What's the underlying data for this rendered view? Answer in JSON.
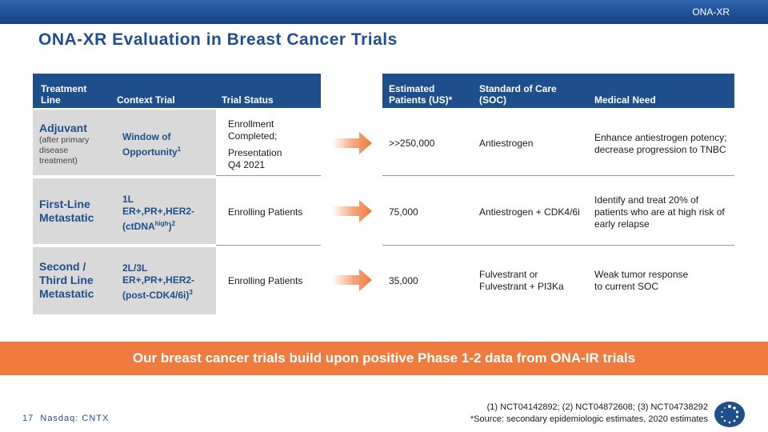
{
  "header": {
    "brand": "ONA-XR"
  },
  "title": "ONA-XR Evaluation in Breast Cancer Trials",
  "table": {
    "left_headers": {
      "line": [
        "Treatment",
        "Line"
      ],
      "context": "Context Trial",
      "status": "Trial Status"
    },
    "right_headers": {
      "patients": [
        "Estimated",
        "Patients (US)*"
      ],
      "soc": [
        "Standard of Care",
        "(SOC)"
      ],
      "need": "Medical Need"
    },
    "rows": [
      {
        "line_title": "Adjuvant",
        "line_sub": [
          "(after primary",
          "disease",
          "treatment)"
        ],
        "context": [
          "Window of",
          "Opportunity"
        ],
        "context_sup": "1",
        "status": [
          "Enrollment",
          "Completed;"
        ],
        "status2": [
          "Presentation",
          "Q4 2021"
        ],
        "patients": ">>250,000",
        "soc": [
          "Antiestrogen"
        ],
        "need": [
          "Enhance antiestrogen potency;",
          "decrease progression to TNBC"
        ]
      },
      {
        "line_title": [
          "First-Line",
          "Metastatic"
        ],
        "context": [
          "1L",
          "ER+,PR+,HER2-",
          "(ctDNA"
        ],
        "context_sup_mid": "high",
        "context_tail": ")",
        "context_sup": "2",
        "status": [
          "Enrolling Patients"
        ],
        "patients": "75,000",
        "soc": [
          "Antiestrogen + CDK4/6i"
        ],
        "need": [
          "Identify and treat 20% of",
          "patients who are at high risk of",
          "early relapse"
        ]
      },
      {
        "line_title": [
          "Second /",
          "Third Line",
          "Metastatic"
        ],
        "context": [
          "2L/3L",
          "ER+,PR+,HER2-",
          "(post-CDK4/6i)"
        ],
        "context_sup": "3",
        "status": [
          "Enrolling Patients"
        ],
        "patients": "35,000",
        "soc": [
          "Fulvestrant or",
          "Fulvestrant + PI3Ka"
        ],
        "need": [
          "Weak tumor response",
          "to current SOC"
        ]
      }
    ]
  },
  "banner": "Our breast cancer trials build upon positive Phase 1-2 data from ONA-IR trials",
  "footer": {
    "page": "17",
    "ticker": "Nasdaq: CNTX",
    "refs": "(1) NCT04142892; (2) NCT04872608; (3) NCT04738292",
    "source": "*Source: secondary epidemiologic estimates, 2020 estimates"
  },
  "colors": {
    "navy": "#1f4e8c",
    "orange": "#ef7b3f",
    "gray": "#d9d9d9"
  }
}
